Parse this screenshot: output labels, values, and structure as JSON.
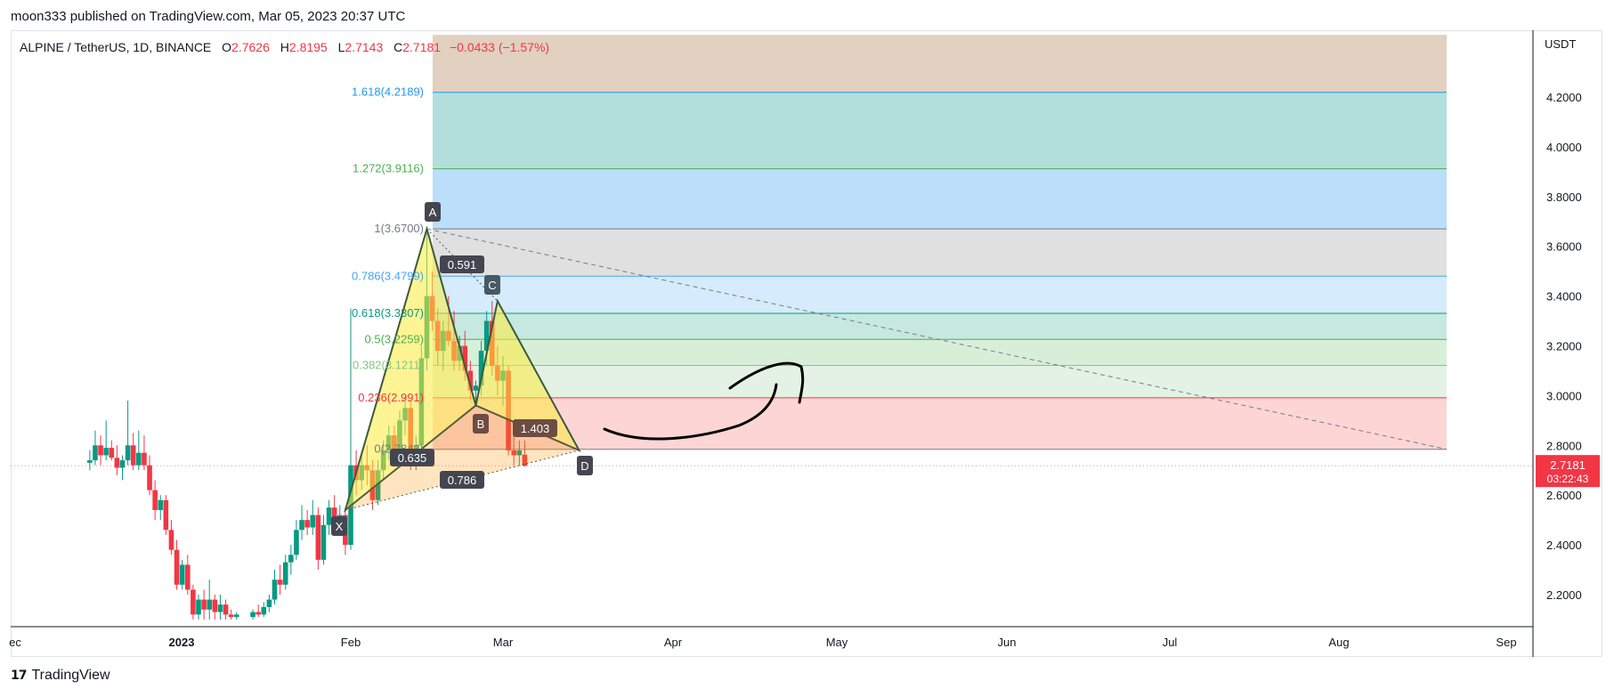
{
  "publisher_line": "moon333 published on TradingView.com, Mar 05, 2023 20:37 UTC",
  "symbol": {
    "pair": "ALPINE / TetherUS, 1D, BINANCE",
    "o_label": "O",
    "o": "2.7626",
    "h_label": "H",
    "h": "2.8195",
    "l_label": "L",
    "l": "2.7143",
    "c_label": "C",
    "c": "2.7181",
    "change": "−0.0433 (−1.57%)"
  },
  "price_axis": {
    "currency": "USDT",
    "ticks": [
      "4.2000",
      "4.0000",
      "3.8000",
      "3.6000",
      "3.4000",
      "3.2000",
      "3.0000",
      "2.8000",
      "2.6000",
      "2.4000",
      "2.2000"
    ],
    "last_price": "2.7181",
    "countdown": "03:22:43"
  },
  "time_axis": {
    "ticks": [
      "ec",
      "2023",
      "Feb",
      "Mar",
      "Apr",
      "May",
      "Jun",
      "Jul",
      "Aug",
      "Sep"
    ]
  },
  "fib_levels": [
    {
      "label": "1.618(4.2189)",
      "level": 4.2189,
      "color": "#2196f3",
      "fill": "#b2dfdb"
    },
    {
      "label": "1.272(3.9116)",
      "level": 3.9116,
      "color": "#4caf50",
      "fill": "#bbdefb"
    },
    {
      "label": "1(3.6700)",
      "level": 3.67,
      "color": "#787b86",
      "fill": "#e0e0e0"
    },
    {
      "label": "0.786(3.4799)",
      "level": 3.4799,
      "color": "#42a5f5",
      "fill": "#d6ebfb"
    },
    {
      "label": "0.618(3.3307)",
      "level": 3.3307,
      "color": "#089981",
      "fill": "#c6e8e0"
    },
    {
      "label": "0.5(3.2259)",
      "level": 3.2259,
      "color": "#4caf50",
      "fill": "#d7efd9"
    },
    {
      "label": "0.382(3.1211)",
      "level": 3.1211,
      "color": "#81c784",
      "fill": "#e3f2e4"
    },
    {
      "label": "0.236(2.991)",
      "level": 2.991,
      "color": "#f23645",
      "fill": "#fdd5d5"
    },
    {
      "label": "0(2.7843)",
      "level": 2.7843,
      "color": "#787b86",
      "fill": "none"
    }
  ],
  "fib_top_band": {
    "level": 4.45,
    "fill": "#e2d0c0"
  },
  "harmonic": {
    "points": [
      {
        "name": "X",
        "date": "2023-01-31",
        "price": 2.54
      },
      {
        "name": "A",
        "date": "2023-02-15",
        "price": 3.67
      },
      {
        "name": "B",
        "date": "2023-02-24",
        "price": 2.96
      },
      {
        "name": "C",
        "date": "2023-02-28",
        "price": 3.38
      },
      {
        "name": "D",
        "date": "2023-03-15",
        "price": 2.78
      }
    ],
    "ratios": {
      "xab": "0.635",
      "abc": "0.591",
      "bcd": "1.403",
      "xad": "0.786"
    }
  },
  "chart_data": {
    "type": "candlestick",
    "title": "ALPINE / TetherUS, 1D, BINANCE",
    "ylabel": "USDT",
    "ylim": [
      2.1,
      4.45
    ],
    "x_ticks": [
      "ec",
      "2023",
      "Feb",
      "Mar",
      "Apr",
      "May",
      "Jun",
      "Jul",
      "Aug",
      "Sep"
    ],
    "series": [
      {
        "name": "ALPINE",
        "values": [
          {
            "date": "2022-12-15",
            "o": 2.73,
            "h": 2.78,
            "l": 2.7,
            "c": 2.74
          },
          {
            "date": "2022-12-16",
            "o": 2.74,
            "h": 2.86,
            "l": 2.72,
            "c": 2.8
          },
          {
            "date": "2022-12-17",
            "o": 2.8,
            "h": 2.84,
            "l": 2.72,
            "c": 2.76
          },
          {
            "date": "2022-12-18",
            "o": 2.76,
            "h": 2.9,
            "l": 2.74,
            "c": 2.79
          },
          {
            "date": "2022-12-19",
            "o": 2.79,
            "h": 2.82,
            "l": 2.74,
            "c": 2.75
          },
          {
            "date": "2022-12-20",
            "o": 2.75,
            "h": 2.8,
            "l": 2.68,
            "c": 2.71
          },
          {
            "date": "2022-12-21",
            "o": 2.71,
            "h": 2.76,
            "l": 2.66,
            "c": 2.74
          },
          {
            "date": "2022-12-22",
            "o": 2.74,
            "h": 2.98,
            "l": 2.72,
            "c": 2.8
          },
          {
            "date": "2022-12-23",
            "o": 2.8,
            "h": 2.85,
            "l": 2.7,
            "c": 2.72
          },
          {
            "date": "2022-12-24",
            "o": 2.72,
            "h": 2.86,
            "l": 2.7,
            "c": 2.77
          },
          {
            "date": "2022-12-25",
            "o": 2.77,
            "h": 2.84,
            "l": 2.7,
            "c": 2.72
          },
          {
            "date": "2022-12-26",
            "o": 2.72,
            "h": 2.76,
            "l": 2.6,
            "c": 2.62
          },
          {
            "date": "2022-12-27",
            "o": 2.62,
            "h": 2.66,
            "l": 2.5,
            "c": 2.54
          },
          {
            "date": "2022-12-28",
            "o": 2.54,
            "h": 2.6,
            "l": 2.5,
            "c": 2.58
          },
          {
            "date": "2022-12-29",
            "o": 2.58,
            "h": 2.6,
            "l": 2.44,
            "c": 2.46
          },
          {
            "date": "2022-12-30",
            "o": 2.46,
            "h": 2.5,
            "l": 2.36,
            "c": 2.38
          },
          {
            "date": "2022-12-31",
            "o": 2.38,
            "h": 2.42,
            "l": 2.22,
            "c": 2.24
          },
          {
            "date": "2023-01-01",
            "o": 2.24,
            "h": 2.34,
            "l": 2.22,
            "c": 2.32
          },
          {
            "date": "2023-01-02",
            "o": 2.32,
            "h": 2.36,
            "l": 2.2,
            "c": 2.22
          },
          {
            "date": "2023-01-03",
            "o": 2.22,
            "h": 2.24,
            "l": 2.1,
            "c": 2.12
          },
          {
            "date": "2023-01-04",
            "o": 2.12,
            "h": 2.2,
            "l": 2.1,
            "c": 2.18
          },
          {
            "date": "2023-01-05",
            "o": 2.18,
            "h": 2.22,
            "l": 2.1,
            "c": 2.14
          },
          {
            "date": "2023-01-06",
            "o": 2.14,
            "h": 2.26,
            "l": 2.1,
            "c": 2.18
          },
          {
            "date": "2023-01-07",
            "o": 2.18,
            "h": 2.2,
            "l": 2.1,
            "c": 2.13
          },
          {
            "date": "2023-01-08",
            "o": 2.13,
            "h": 2.2,
            "l": 2.1,
            "c": 2.16
          },
          {
            "date": "2023-01-09",
            "o": 2.16,
            "h": 2.18,
            "l": 2.1,
            "c": 2.12
          },
          {
            "date": "2023-01-10",
            "o": 2.12,
            "h": 2.14,
            "l": 2.1,
            "c": 2.11
          },
          {
            "date": "2023-01-11",
            "o": 2.11,
            "h": 2.13,
            "l": 2.1,
            "c": 2.12
          },
          {
            "date": "2023-01-14",
            "o": 2.11,
            "h": 2.14,
            "l": 2.1,
            "c": 2.13
          },
          {
            "date": "2023-01-15",
            "o": 2.13,
            "h": 2.16,
            "l": 2.11,
            "c": 2.12
          },
          {
            "date": "2023-01-16",
            "o": 2.12,
            "h": 2.17,
            "l": 2.11,
            "c": 2.15
          },
          {
            "date": "2023-01-17",
            "o": 2.15,
            "h": 2.2,
            "l": 2.13,
            "c": 2.18
          },
          {
            "date": "2023-01-18",
            "o": 2.18,
            "h": 2.3,
            "l": 2.16,
            "c": 2.26
          },
          {
            "date": "2023-01-19",
            "o": 2.26,
            "h": 2.32,
            "l": 2.2,
            "c": 2.24
          },
          {
            "date": "2023-01-20",
            "o": 2.24,
            "h": 2.36,
            "l": 2.22,
            "c": 2.33
          },
          {
            "date": "2023-01-21",
            "o": 2.33,
            "h": 2.4,
            "l": 2.28,
            "c": 2.36
          },
          {
            "date": "2023-01-22",
            "o": 2.36,
            "h": 2.5,
            "l": 2.34,
            "c": 2.46
          },
          {
            "date": "2023-01-23",
            "o": 2.46,
            "h": 2.56,
            "l": 2.42,
            "c": 2.5
          },
          {
            "date": "2023-01-24",
            "o": 2.5,
            "h": 2.54,
            "l": 2.44,
            "c": 2.47
          },
          {
            "date": "2023-01-25",
            "o": 2.47,
            "h": 2.58,
            "l": 2.44,
            "c": 2.52
          },
          {
            "date": "2023-01-26",
            "o": 2.52,
            "h": 2.55,
            "l": 2.3,
            "c": 2.34
          },
          {
            "date": "2023-01-27",
            "o": 2.34,
            "h": 2.52,
            "l": 2.32,
            "c": 2.48
          },
          {
            "date": "2023-01-28",
            "o": 2.48,
            "h": 2.58,
            "l": 2.44,
            "c": 2.55
          },
          {
            "date": "2023-01-29",
            "o": 2.55,
            "h": 2.6,
            "l": 2.48,
            "c": 2.5
          },
          {
            "date": "2023-01-30",
            "o": 2.5,
            "h": 2.56,
            "l": 2.46,
            "c": 2.52
          },
          {
            "date": "2023-01-31",
            "o": 2.52,
            "h": 2.55,
            "l": 2.36,
            "c": 2.4
          },
          {
            "date": "2023-02-01",
            "o": 2.4,
            "h": 3.35,
            "l": 2.38,
            "c": 2.72
          },
          {
            "date": "2023-02-02",
            "o": 2.72,
            "h": 2.78,
            "l": 2.6,
            "c": 2.66
          },
          {
            "date": "2023-02-03",
            "o": 2.66,
            "h": 2.76,
            "l": 2.62,
            "c": 2.72
          },
          {
            "date": "2023-02-04",
            "o": 2.72,
            "h": 2.8,
            "l": 2.64,
            "c": 2.7
          },
          {
            "date": "2023-02-05",
            "o": 2.7,
            "h": 2.74,
            "l": 2.54,
            "c": 2.58
          },
          {
            "date": "2023-02-06",
            "o": 2.58,
            "h": 2.74,
            "l": 2.56,
            "c": 2.7
          },
          {
            "date": "2023-02-07",
            "o": 2.7,
            "h": 2.82,
            "l": 2.66,
            "c": 2.78
          },
          {
            "date": "2023-02-08",
            "o": 2.78,
            "h": 2.88,
            "l": 2.74,
            "c": 2.84
          },
          {
            "date": "2023-02-09",
            "o": 2.84,
            "h": 2.88,
            "l": 2.72,
            "c": 2.76
          },
          {
            "date": "2023-02-10",
            "o": 2.76,
            "h": 2.94,
            "l": 2.74,
            "c": 2.9
          },
          {
            "date": "2023-02-11",
            "o": 2.9,
            "h": 3.0,
            "l": 2.84,
            "c": 2.95
          },
          {
            "date": "2023-02-12",
            "o": 2.95,
            "h": 2.98,
            "l": 2.7,
            "c": 2.74
          },
          {
            "date": "2023-02-13",
            "o": 2.74,
            "h": 2.84,
            "l": 2.7,
            "c": 2.8
          },
          {
            "date": "2023-02-14",
            "o": 2.8,
            "h": 3.2,
            "l": 2.78,
            "c": 3.15
          },
          {
            "date": "2023-02-15",
            "o": 3.15,
            "h": 3.67,
            "l": 3.1,
            "c": 3.4
          },
          {
            "date": "2023-02-16",
            "o": 3.4,
            "h": 3.5,
            "l": 3.26,
            "c": 3.3
          },
          {
            "date": "2023-02-17",
            "o": 3.3,
            "h": 3.35,
            "l": 3.12,
            "c": 3.18
          },
          {
            "date": "2023-02-18",
            "o": 3.18,
            "h": 3.3,
            "l": 3.1,
            "c": 3.26
          },
          {
            "date": "2023-02-19",
            "o": 3.26,
            "h": 3.4,
            "l": 3.2,
            "c": 3.22
          },
          {
            "date": "2023-02-20",
            "o": 3.22,
            "h": 3.34,
            "l": 3.1,
            "c": 3.14
          },
          {
            "date": "2023-02-21",
            "o": 3.14,
            "h": 3.24,
            "l": 3.1,
            "c": 3.2
          },
          {
            "date": "2023-02-22",
            "o": 3.2,
            "h": 3.26,
            "l": 3.06,
            "c": 3.1
          },
          {
            "date": "2023-02-23",
            "o": 3.1,
            "h": 3.14,
            "l": 2.98,
            "c": 3.02
          },
          {
            "date": "2023-02-24",
            "o": 3.02,
            "h": 3.06,
            "l": 2.96,
            "c": 3.04
          },
          {
            "date": "2023-02-25",
            "o": 3.04,
            "h": 3.22,
            "l": 3.0,
            "c": 3.18
          },
          {
            "date": "2023-02-26",
            "o": 3.18,
            "h": 3.34,
            "l": 3.12,
            "c": 3.3
          },
          {
            "date": "2023-02-27",
            "o": 3.3,
            "h": 3.38,
            "l": 3.08,
            "c": 3.12
          },
          {
            "date": "2023-02-28",
            "o": 3.12,
            "h": 3.2,
            "l": 3.0,
            "c": 3.06
          },
          {
            "date": "2023-03-01",
            "o": 3.06,
            "h": 3.16,
            "l": 2.96,
            "c": 3.1
          },
          {
            "date": "2023-03-02",
            "o": 3.1,
            "h": 3.12,
            "l": 2.76,
            "c": 2.78
          },
          {
            "date": "2023-03-03",
            "o": 2.78,
            "h": 2.84,
            "l": 2.72,
            "c": 2.76
          },
          {
            "date": "2023-03-04",
            "o": 2.76,
            "h": 2.82,
            "l": 2.72,
            "c": 2.78
          },
          {
            "date": "2023-03-05",
            "o": 2.7626,
            "h": 2.8195,
            "l": 2.7143,
            "c": 2.7181
          }
        ]
      }
    ]
  },
  "brand": {
    "logo": "17",
    "name": "TradingView"
  },
  "colors": {
    "up": "#089981",
    "down": "#f23645",
    "pattern_fill": "#ffeb3b",
    "pattern_line": "#3a5a3c",
    "text_muted": "#787b86"
  }
}
